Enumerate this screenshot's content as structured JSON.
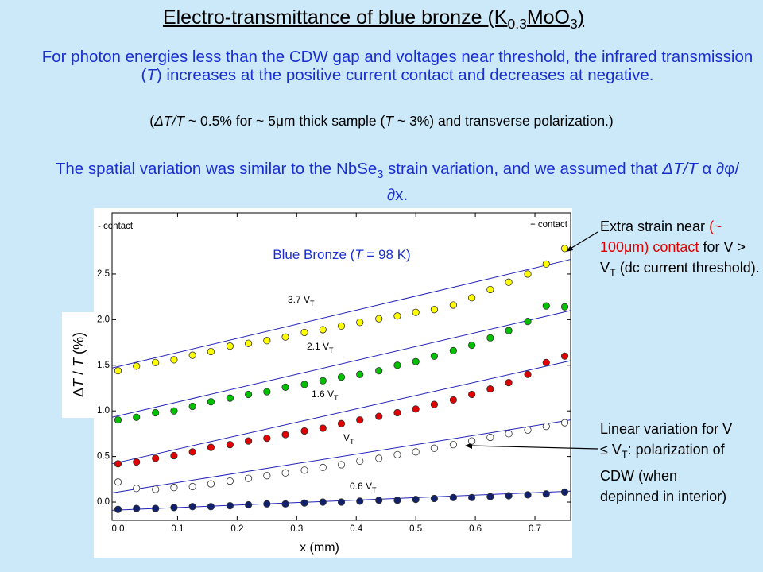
{
  "title": [
    {
      "t": "Electro-transmittance of blue bronze (K"
    },
    {
      "t": "0.3",
      "sub": true
    },
    {
      "t": "MoO"
    },
    {
      "t": "3",
      "sub": true
    },
    {
      "t": ")"
    }
  ],
  "paragraphs": [
    [
      {
        "t": "For photon energies less than the CDW gap and voltages near threshold, the infrared transmission ("
      },
      {
        "t": "T",
        "i": true
      },
      {
        "t": ") increases at the positive current contact and decreases at negative."
      }
    ],
    [
      {
        "t": "("
      },
      {
        "t": "ΔT/T",
        "i": true
      },
      {
        "t": " ~ 0.5% for ~ 5μm thick sample ("
      },
      {
        "t": "T",
        "i": true
      },
      {
        "t": " ~ 3%) and transverse polarization.)"
      }
    ],
    [
      {
        "t": "The spatial variation was similar to the NbSe"
      },
      {
        "t": "3",
        "sub": true
      },
      {
        "t": " strain variation, and we assumed that "
      },
      {
        "t": "ΔT/T",
        "i": true
      },
      {
        "t": "  α  ∂φ/∂x."
      }
    ]
  ],
  "annotations": [
    [
      {
        "t": "Extra strain near "
      },
      {
        "t": "(~ 100μm) contact",
        "color": "#e00000"
      },
      {
        "t": " for V > V"
      },
      {
        "t": "T",
        "sub": true
      },
      {
        "t": " (dc current threshold)."
      }
    ],
    [
      {
        "t": "Linear variation for V ≤ V"
      },
      {
        "t": "T",
        "sub": true
      },
      {
        "t": ": polarization of CDW (when depinned in interior)"
      }
    ]
  ],
  "chart_data": {
    "type": "scatter",
    "title": [
      {
        "t": "Blue Bronze ("
      },
      {
        "t": "T",
        "i": true
      },
      {
        "t": " = 98 K)"
      }
    ],
    "title_color": "#1a2fd0",
    "left_note": "- contact",
    "right_note": "+ contact",
    "x_label": "x (mm)",
    "y_label": [
      {
        "t": "Δ"
      },
      {
        "t": "T",
        "i": true
      },
      {
        "t": " / "
      },
      {
        "t": "T",
        "i": true
      },
      {
        "t": " (%)"
      }
    ],
    "xlim": [
      -0.01,
      0.76
    ],
    "ylim": [
      -0.2,
      3.17
    ],
    "xticks": [
      {
        "value": 0,
        "label": "0.0"
      },
      0.1,
      0.2,
      0.3,
      0.4,
      0.5,
      0.6,
      0.7
    ],
    "yticks": [
      {
        "value": 0,
        "label": "0.0"
      },
      0.5,
      {
        "value": 1,
        "label": "1.0"
      },
      1.5,
      {
        "value": 2,
        "label": "2.0"
      },
      2.5
    ],
    "x": [
      0,
      0.031,
      0.063,
      0.094,
      0.125,
      0.156,
      0.188,
      0.219,
      0.25,
      0.281,
      0.313,
      0.344,
      0.375,
      0.406,
      0.438,
      0.469,
      0.5,
      0.531,
      0.563,
      0.594,
      0.625,
      0.656,
      0.688,
      0.719,
      0.75
    ],
    "fit_x": [
      -0.01,
      0.76
    ],
    "fit_color": "#2323b8",
    "series": [
      {
        "name": [
          {
            "t": "3.7 V"
          },
          {
            "t": "T",
            "sub": true
          }
        ],
        "color": "#ffff00",
        "values": [
          1.44,
          1.49,
          1.53,
          1.56,
          1.61,
          1.65,
          1.71,
          1.74,
          1.77,
          1.81,
          1.86,
          1.89,
          1.93,
          1.97,
          2.01,
          2.04,
          2.08,
          2.11,
          2.16,
          2.24,
          2.33,
          2.41,
          2.5,
          2.61,
          2.78
        ],
        "fit": [
          1.47,
          2.66
        ]
      },
      {
        "name": [
          {
            "t": "2.1 V"
          },
          {
            "t": "T",
            "sub": true
          }
        ],
        "color": "#00c000",
        "values": [
          0.9,
          0.93,
          0.98,
          1.0,
          1.05,
          1.1,
          1.14,
          1.18,
          1.21,
          1.26,
          1.29,
          1.33,
          1.37,
          1.4,
          1.44,
          1.5,
          1.54,
          1.6,
          1.66,
          1.72,
          1.8,
          1.88,
          1.98,
          2.15,
          2.14
        ],
        "fit": [
          0.93,
          2.1
        ]
      },
      {
        "name": [
          {
            "t": "1.6 V"
          },
          {
            "t": "T",
            "sub": true
          }
        ],
        "color": "#e00000",
        "values": [
          0.42,
          0.44,
          0.48,
          0.51,
          0.55,
          0.6,
          0.63,
          0.67,
          0.7,
          0.74,
          0.78,
          0.81,
          0.86,
          0.9,
          0.94,
          0.98,
          1.02,
          1.07,
          1.12,
          1.18,
          1.24,
          1.31,
          1.4,
          1.53,
          1.6
        ],
        "fit": [
          0.42,
          1.55
        ]
      },
      {
        "name": [
          {
            "t": "V"
          },
          {
            "t": "T",
            "sub": true
          }
        ],
        "color": "#ffffff",
        "values": [
          0.22,
          0.15,
          0.14,
          0.16,
          0.17,
          0.2,
          0.23,
          0.26,
          0.29,
          0.32,
          0.35,
          0.38,
          0.41,
          0.45,
          0.48,
          0.52,
          0.55,
          0.59,
          0.63,
          0.67,
          0.71,
          0.75,
          0.79,
          0.83,
          0.87
        ],
        "fit": [
          0.1,
          0.9
        ]
      },
      {
        "name": [
          {
            "t": "0.6 V"
          },
          {
            "t": "T",
            "sub": true
          }
        ],
        "color": "#10206a",
        "values": [
          -0.08,
          -0.07,
          -0.07,
          -0.06,
          -0.05,
          -0.05,
          -0.04,
          -0.03,
          -0.02,
          -0.02,
          -0.01,
          0,
          0,
          0.01,
          0.02,
          0.02,
          0.03,
          0.04,
          0.05,
          0.05,
          0.06,
          0.07,
          0.08,
          0.09,
          0.11
        ],
        "fit": [
          -0.09,
          0.12
        ]
      }
    ]
  }
}
